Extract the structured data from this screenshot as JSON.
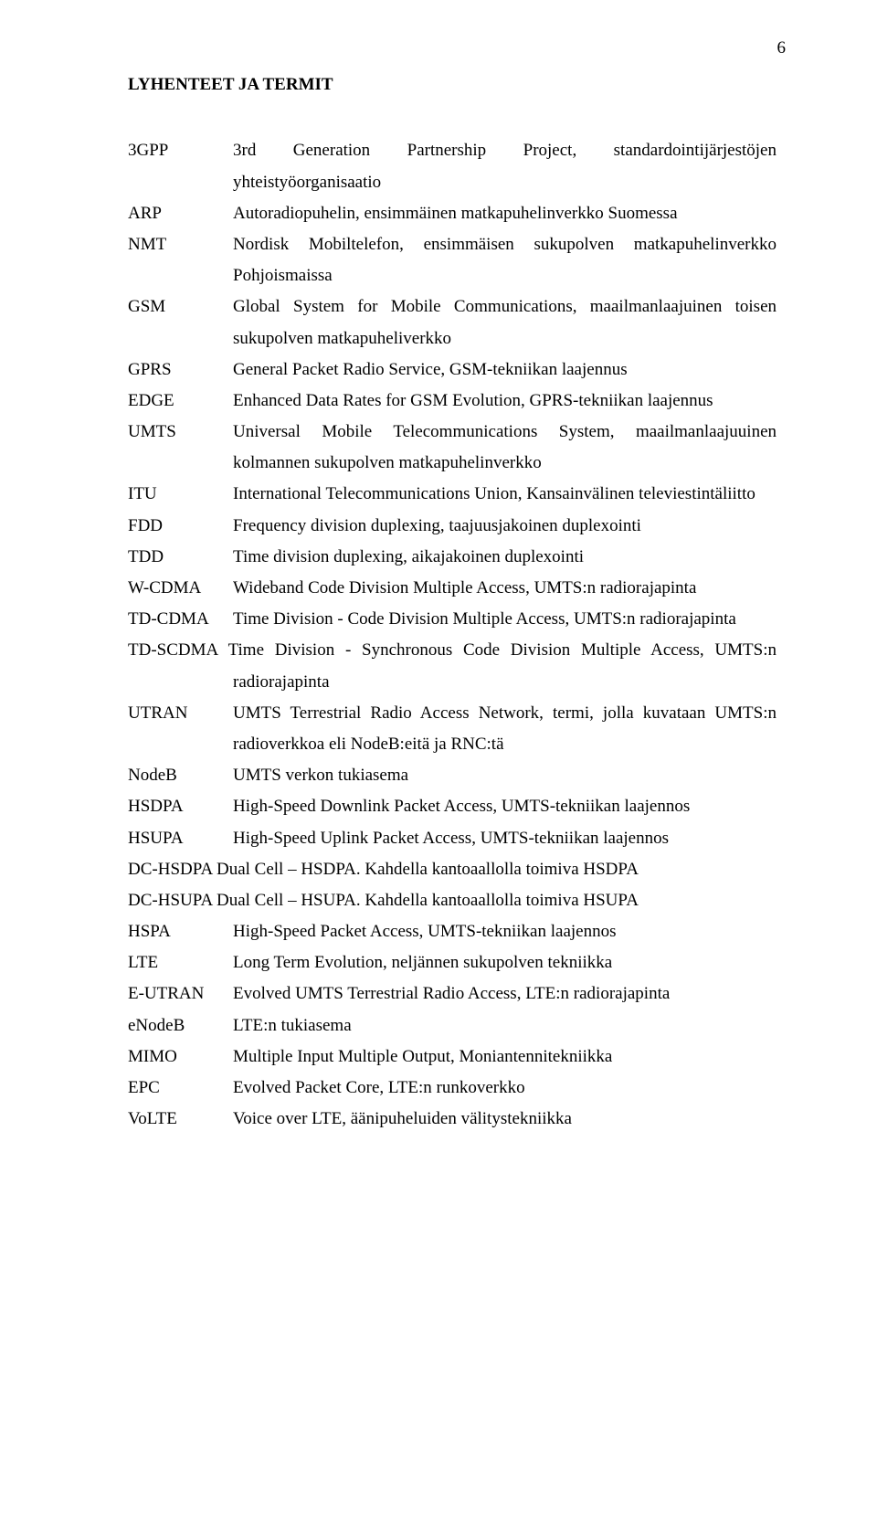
{
  "pageNumber": "6",
  "heading": "LYHENTEET JA TERMIT",
  "terms": [
    {
      "abbr": "3GPP",
      "def": "3rd Generation Partnership Project, standardointijärjestöjen yhteistyöorganisaatio"
    },
    {
      "abbr": "ARP",
      "def": "Autoradiopuhelin, ensimmäinen matkapuhelinverkko Suomessa"
    },
    {
      "abbr": "NMT",
      "def": "Nordisk Mobiltelefon, ensimmäisen sukupolven matkapuhelinverkko Pohjoismaissa"
    },
    {
      "abbr": "GSM",
      "def": "Global System for Mobile Communications, maailmanlaajuinen toisen sukupolven matkapuheliverkko"
    },
    {
      "abbr": "GPRS",
      "def": "General Packet Radio Service, GSM-tekniikan laajennus"
    },
    {
      "abbr": "EDGE",
      "def": "Enhanced Data Rates for GSM Evolution, GPRS-tekniikan laajennus"
    },
    {
      "abbr": "UMTS",
      "def": "Universal Mobile Telecommunications System, maailmanlaajuuinen kolmannen sukupolven matkapuhelinverkko"
    },
    {
      "abbr": "ITU",
      "def": "International Telecommunications Union, Kansainvälinen televiestintäliitto"
    },
    {
      "abbr": "FDD",
      "def": "Frequency division duplexing, taajuusjakoinen duplexointi"
    },
    {
      "abbr": "TDD",
      "def": "Time division duplexing, aikajakoinen duplexointi"
    },
    {
      "abbr": "W-CDMA",
      "def": "Wideband Code Division Multiple Access, UMTS:n radiorajapinta"
    },
    {
      "abbr": "TD-CDMA",
      "def": "Time Division - Code Division Multiple Access, UMTS:n radiorajapinta"
    },
    {
      "abbr": "TD-SCDMA",
      "def": "Time Division - Synchronous Code Division Multiple Access, UMTS:n radiorajapinta",
      "inline": true
    },
    {
      "abbr": "UTRAN",
      "def": "UMTS Terrestrial Radio Access Network, termi, jolla kuvataan UMTS:n radioverkkoa eli NodeB:eitä ja RNC:tä"
    },
    {
      "abbr": "NodeB",
      "def": "UMTS verkon tukiasema"
    },
    {
      "abbr": "HSDPA",
      "def": "High-Speed Downlink Packet Access, UMTS-tekniikan laajennos"
    },
    {
      "abbr": "HSUPA",
      "def": "High-Speed Uplink Packet Access, UMTS-tekniikan laajennos"
    },
    {
      "abbr": "DC-HSDPA",
      "def": "Dual Cell – HSDPA. Kahdella kantoaallolla toimiva HSDPA",
      "inline": true
    },
    {
      "abbr": "DC-HSUPA",
      "def": "Dual Cell – HSUPA. Kahdella kantoaallolla toimiva HSUPA",
      "inline": true
    },
    {
      "abbr": "HSPA",
      "def": "High-Speed Packet Access, UMTS-tekniikan laajennos"
    },
    {
      "abbr": "LTE",
      "def": "Long Term Evolution, neljännen sukupolven tekniikka"
    },
    {
      "abbr": "E-UTRAN",
      "def": "Evolved UMTS Terrestrial Radio Access, LTE:n radiorajapinta"
    },
    {
      "abbr": "eNodeB",
      "def": "LTE:n tukiasema"
    },
    {
      "abbr": "MIMO",
      "def": "Multiple Input Multiple Output, Moniantennitekniikka"
    },
    {
      "abbr": "EPC",
      "def": "Evolved Packet Core, LTE:n runkoverkko"
    },
    {
      "abbr": "VoLTE",
      "def": "Voice over LTE, äänipuheluiden välitystekniikka"
    }
  ]
}
